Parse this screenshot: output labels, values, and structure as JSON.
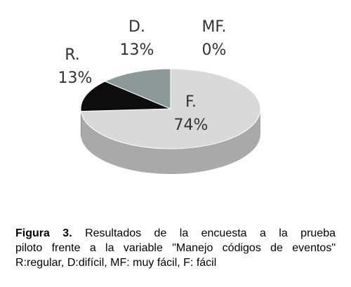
{
  "chart_data": {
    "type": "pie3d",
    "categories": [
      "F.",
      "R.",
      "D.",
      "MF."
    ],
    "values": [
      74,
      13,
      13,
      0
    ],
    "value_labels": [
      "74%",
      "13%",
      "13%",
      "0%"
    ],
    "colors": [
      "#d9d9d9",
      "#0d0d0d",
      "#8e9898",
      "#c8c8c8"
    ]
  },
  "caption": {
    "label": "Figura 3.",
    "lines": [
      "Resultados de la encuesta a la prueba",
      "piloto frente a la variable \"Manejo códigos de eventos\"",
      "R:regular, D:difícil, MF: muy fácil, F: fácil"
    ]
  }
}
